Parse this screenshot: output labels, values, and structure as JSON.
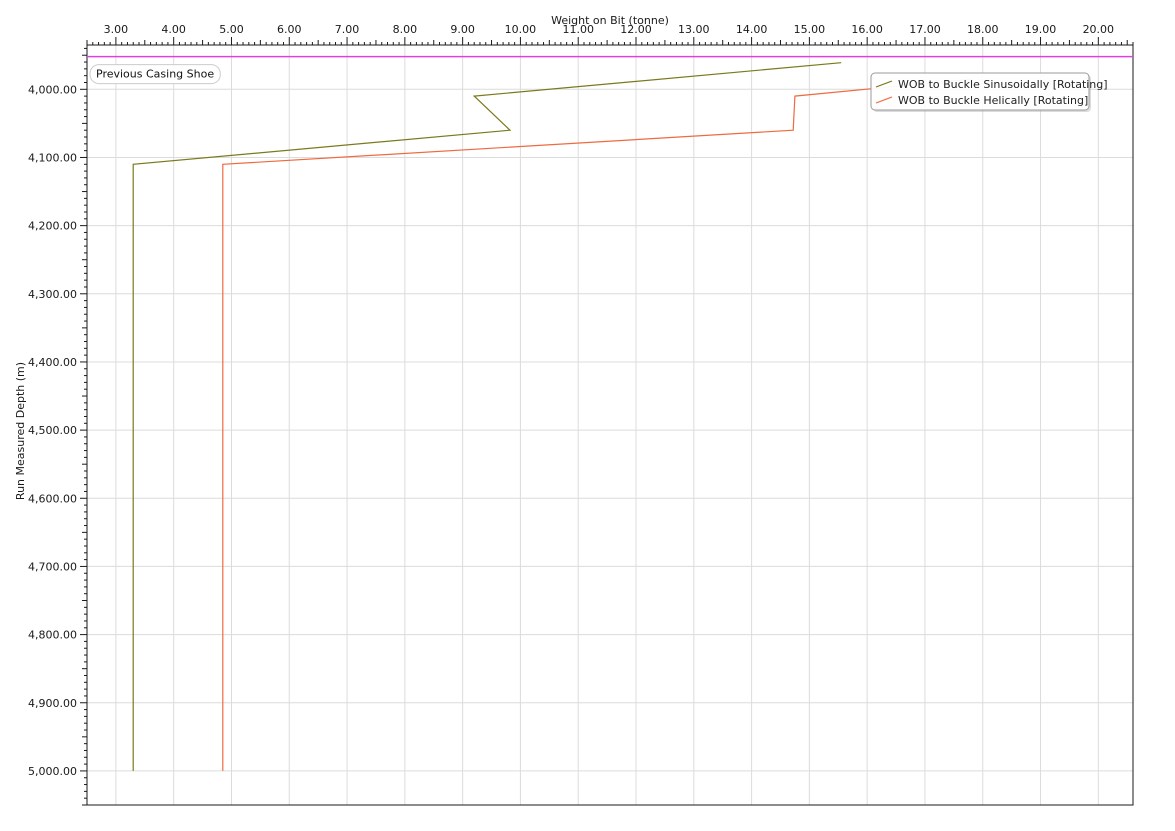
{
  "chart_data": {
    "type": "line",
    "xlabel": "Weight on Bit (tonne)",
    "ylabel": "Run Measured Depth (m)",
    "x_axis_position": "top",
    "y_inverted": true,
    "xlim": [
      2.5,
      20.6
    ],
    "ylim": [
      3935,
      5050
    ],
    "x_ticks": [
      3,
      4,
      5,
      6,
      7,
      8,
      9,
      10,
      11,
      12,
      13,
      14,
      15,
      16,
      17,
      18,
      19,
      20
    ],
    "x_tick_labels": [
      "3.00",
      "4.00",
      "5.00",
      "6.00",
      "7.00",
      "8.00",
      "9.00",
      "10.00",
      "11.00",
      "12.00",
      "13.00",
      "14.00",
      "15.00",
      "16.00",
      "17.00",
      "18.00",
      "19.00",
      "20.00"
    ],
    "y_ticks": [
      4000,
      4100,
      4200,
      4300,
      4400,
      4500,
      4600,
      4700,
      4800,
      4900,
      5000
    ],
    "y_tick_labels": [
      "4,000.00",
      "4,100.00",
      "4,200.00",
      "4,300.00",
      "4,400.00",
      "4,500.00",
      "4,600.00",
      "4,700.00",
      "4,800.00",
      "4,900.00",
      "5,000.00"
    ],
    "grid": true,
    "legend_position": "top-right",
    "series": [
      {
        "name": "WOB to Buckle Sinusoidally [Rotating]",
        "color": "#7a7a1c",
        "points": [
          [
            15.55,
            3961
          ],
          [
            9.2,
            4010
          ],
          [
            9.82,
            4060
          ],
          [
            3.3,
            4110
          ],
          [
            3.3,
            5000
          ]
        ]
      },
      {
        "name": "WOB to Buckle Helically [Rotating]",
        "color": "#ef6a3e",
        "points": [
          [
            17.8,
            3985
          ],
          [
            14.75,
            4010
          ],
          [
            14.72,
            4060
          ],
          [
            4.85,
            4110
          ],
          [
            4.85,
            5000
          ]
        ]
      }
    ],
    "reference_lines": [
      {
        "label": "Previous Casing Shoe",
        "y": 3952,
        "color": "#e040e0"
      }
    ]
  }
}
